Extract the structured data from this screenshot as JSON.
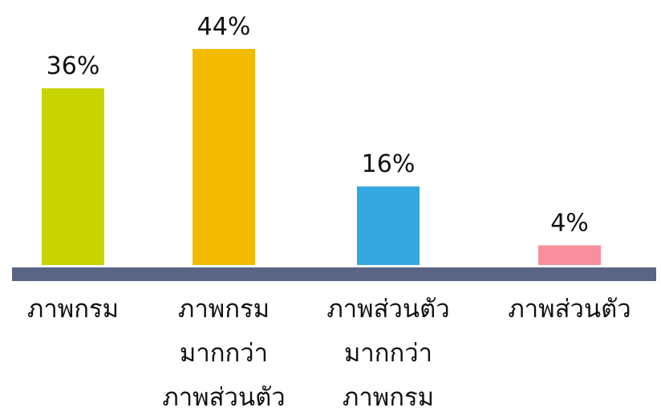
{
  "chart_data": {
    "type": "bar",
    "categories": [
      "ภาพกรม",
      "ภาพกรม\nมากกว่า\nภาพส่วนตัว",
      "ภาพส่วนตัว\nมากกว่า\nภาพกรม",
      "ภาพส่วนตัว"
    ],
    "values": [
      36,
      44,
      16,
      4
    ],
    "value_labels": [
      "36%",
      "44%",
      "16%",
      "4%"
    ],
    "colors": [
      "#c8d400",
      "#f2bb00",
      "#35a7e0",
      "#f98e9e"
    ]
  }
}
